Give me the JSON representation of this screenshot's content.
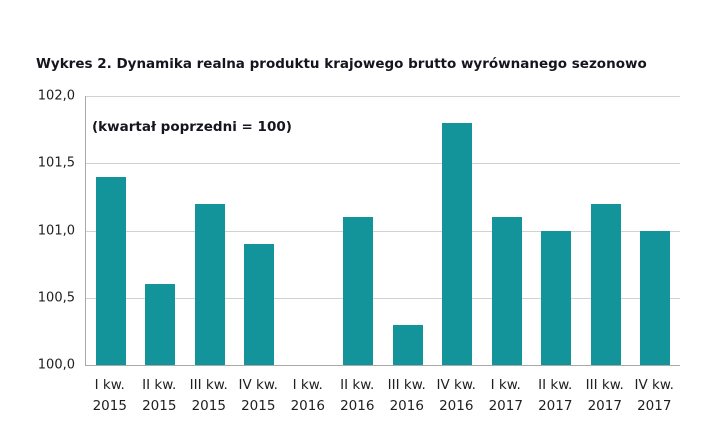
{
  "title": {
    "line1": "Wykres 2. Dynamika realna produktu krajowego brutto wyrównanego sezonowo",
    "line2": "(kwartał poprzedni = 100)"
  },
  "colors": {
    "bar": "#12949a",
    "gridline": "#d2d2d2",
    "axis": "#a8a8a8",
    "text": "#1f1f1f"
  },
  "chart_data": {
    "type": "bar",
    "title": "Wykres 2. Dynamika realna produktu krajowego brutto wyrównanego sezonowo (kwartał poprzedni = 100)",
    "xlabel": "",
    "ylabel": "",
    "ylim": [
      100.0,
      102.0
    ],
    "grid": true,
    "legend": "none",
    "categories": [
      {
        "quarter": "I kw.",
        "year": "2015"
      },
      {
        "quarter": "II kw.",
        "year": "2015"
      },
      {
        "quarter": "III kw.",
        "year": "2015"
      },
      {
        "quarter": "IV kw.",
        "year": "2015"
      },
      {
        "quarter": "I kw.",
        "year": "2016"
      },
      {
        "quarter": "II kw.",
        "year": "2016"
      },
      {
        "quarter": "III kw.",
        "year": "2016"
      },
      {
        "quarter": "IV kw.",
        "year": "2016"
      },
      {
        "quarter": "I kw.",
        "year": "2017"
      },
      {
        "quarter": "II kw.",
        "year": "2017"
      },
      {
        "quarter": "III kw.",
        "year": "2017"
      },
      {
        "quarter": "IV kw.",
        "year": "2017"
      }
    ],
    "values": [
      101.4,
      100.6,
      101.2,
      100.9,
      100.0,
      101.1,
      100.3,
      101.8,
      101.1,
      101.0,
      101.2,
      101.0
    ],
    "yticks": [
      {
        "label": "100,0",
        "value": 100.0
      },
      {
        "label": "100,5",
        "value": 100.5
      },
      {
        "label": "101,0",
        "value": 101.0
      },
      {
        "label": "101,5",
        "value": 101.5
      },
      {
        "label": "102,0",
        "value": 102.0
      }
    ]
  }
}
